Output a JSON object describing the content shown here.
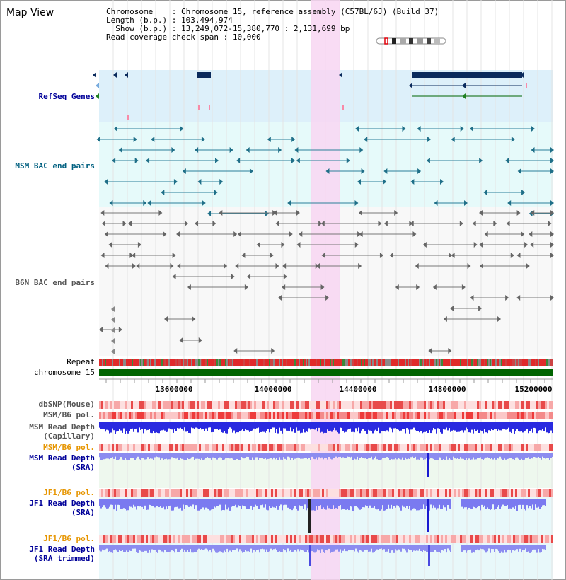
{
  "title": "Map View",
  "info": {
    "chromosome_key": "Chromosome",
    "chromosome_val": "Chromosome 15, reference assembly (C57BL/6J) (Build 37)",
    "length_key": "Length (b.p.)",
    "length_val": "103,494,974",
    "show_key": "Show (b.p.)",
    "show_val": "13,249,072-15,380,770 : 2,131,699 bp",
    "span_key": "Read coverage check span",
    "span_val": "10,000"
  },
  "labels": {
    "refseq": "RefSeq Genes",
    "msm_bac": "MSM BAC end pairs",
    "b6n_bac": "B6N BAC end pairs",
    "repeat": "Repeat",
    "chromosome": "chromosome 15",
    "dbsnp": "dbSNP(Mouse)",
    "msm_pol1": "MSM/B6 pol.",
    "msm_depth_cap_1": "MSM Read Depth",
    "msm_depth_cap_2": "(Capillary)",
    "msm_pol2": "MSM/B6 pol.",
    "msm_depth_sra_1": "MSM Read Depth",
    "msm_depth_sra_2": "(SRA)",
    "jf1_pol1": "JF1/B6 pol.",
    "jf1_depth_1": "JF1 Read Depth",
    "jf1_depth_2": "(SRA)",
    "jf1_pol2": "JF1/B6 pol.",
    "jf1_trim_1": "JF1 Read Depth",
    "jf1_trim_2": "(SRA trimmed)"
  },
  "axis": {
    "ticks": [
      "13600000",
      "14000000",
      "14400000",
      "14800000",
      "15200000"
    ]
  },
  "colors": {
    "refseq_label": "#000099",
    "msm_bac_label": "#006080",
    "b6n_label": "#555555",
    "pol_label": "#e69500",
    "depth_label": "#000099",
    "refseq_bg": "#ddf0fa",
    "msm_bac_bg": "#e6fafa",
    "b6n_bg": "#f8f8f8",
    "highlight": "#f8d6f2",
    "chromosome_bar": "#006400"
  }
}
